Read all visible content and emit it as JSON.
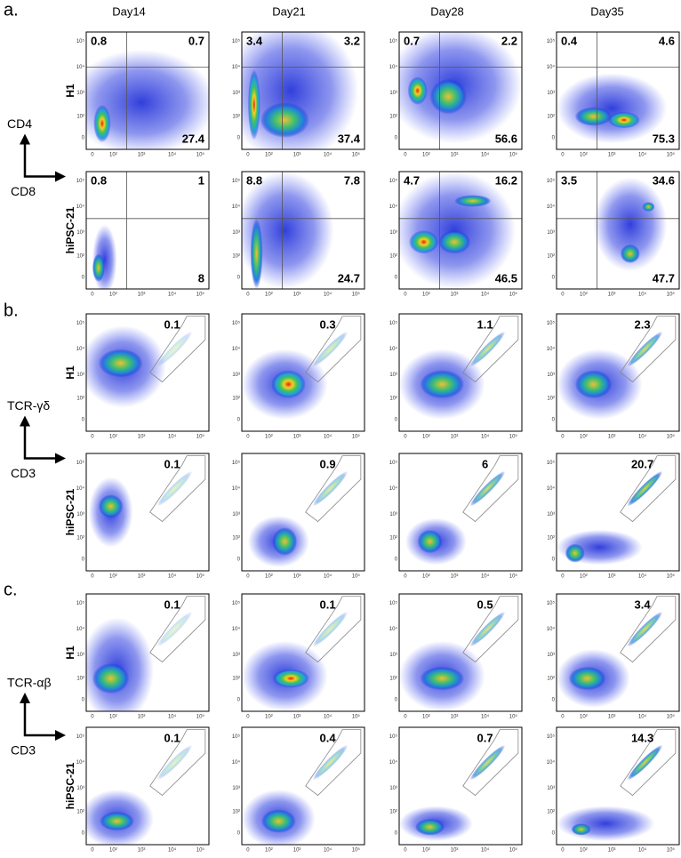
{
  "column_headers": [
    "Day14",
    "Day21",
    "Day28",
    "Day35"
  ],
  "axis_ticks": [
    "0",
    "10²",
    "10³",
    "10⁴",
    "10⁵"
  ],
  "panels": [
    {
      "label": "a.",
      "y_marker": "CD4",
      "x_marker": "CD8",
      "rows": [
        {
          "name": "H1",
          "values": [
            [
              0.8,
              0.7,
              27.4
            ],
            [
              3.4,
              3.2,
              37.4
            ],
            [
              0.7,
              2.2,
              56.6
            ],
            [
              0.4,
              4.6,
              75.3
            ]
          ]
        },
        {
          "name": "hiPSC-21",
          "values": [
            [
              0.8,
              1,
              8
            ],
            [
              8.8,
              7.8,
              24.7
            ],
            [
              4.7,
              16.2,
              46.5
            ],
            [
              3.5,
              34.6,
              47.7
            ]
          ]
        }
      ]
    },
    {
      "label": "b.",
      "y_marker": "TCR-γδ",
      "x_marker": "CD3",
      "rows": [
        {
          "name": "H1",
          "values": [
            0.1,
            0.3,
            1.1,
            2.3
          ]
        },
        {
          "name": "hiPSC-21",
          "values": [
            0.1,
            0.9,
            6,
            20.7
          ]
        }
      ]
    },
    {
      "label": "c.",
      "y_marker": "TCR-αβ",
      "x_marker": "CD3",
      "rows": [
        {
          "name": "H1",
          "values": [
            0.1,
            0.1,
            0.5,
            3.4
          ]
        },
        {
          "name": "hiPSC-21",
          "values": [
            0.1,
            0.4,
            0.7,
            14.3
          ]
        }
      ]
    }
  ]
}
